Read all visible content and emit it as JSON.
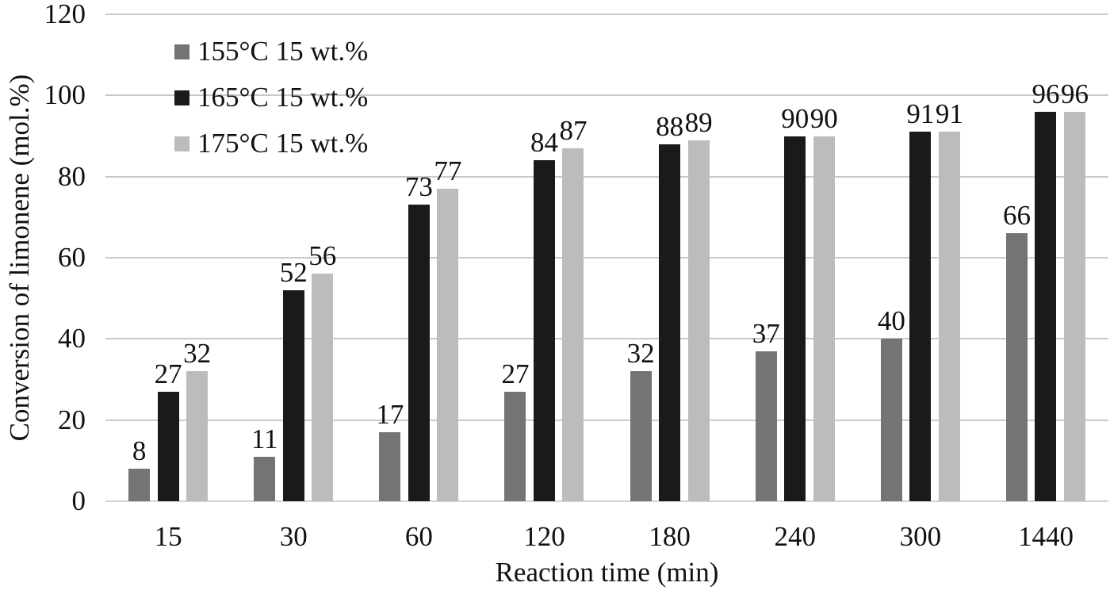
{
  "chart_data": {
    "type": "bar",
    "title": "",
    "xlabel": "Reaction time (min)",
    "ylabel": "Conversion of limonene (mol.%)",
    "categories": [
      "15",
      "30",
      "60",
      "120",
      "180",
      "240",
      "300",
      "1440"
    ],
    "series": [
      {
        "name": "155°C 15 wt.%",
        "color": "#747474",
        "values": [
          8,
          11,
          17,
          27,
          32,
          37,
          40,
          66
        ]
      },
      {
        "name": "165°C 15 wt.%",
        "color": "#1a1a1a",
        "values": [
          27,
          52,
          73,
          84,
          88,
          90,
          91,
          96
        ]
      },
      {
        "name": "175°C 15 wt.%",
        "color": "#bcbcbc",
        "values": [
          32,
          56,
          77,
          87,
          89,
          90,
          91,
          96
        ]
      }
    ],
    "y_ticks": [
      0,
      20,
      40,
      60,
      80,
      100,
      120
    ],
    "ylim": [
      0,
      120
    ],
    "grid": true,
    "data_labels": true,
    "legend_position": "top-left-inside",
    "grid_color": "#c9c9c9",
    "axis_line_color": "#d4d4d4",
    "text_color": "#111111",
    "background": "#ffffff"
  }
}
